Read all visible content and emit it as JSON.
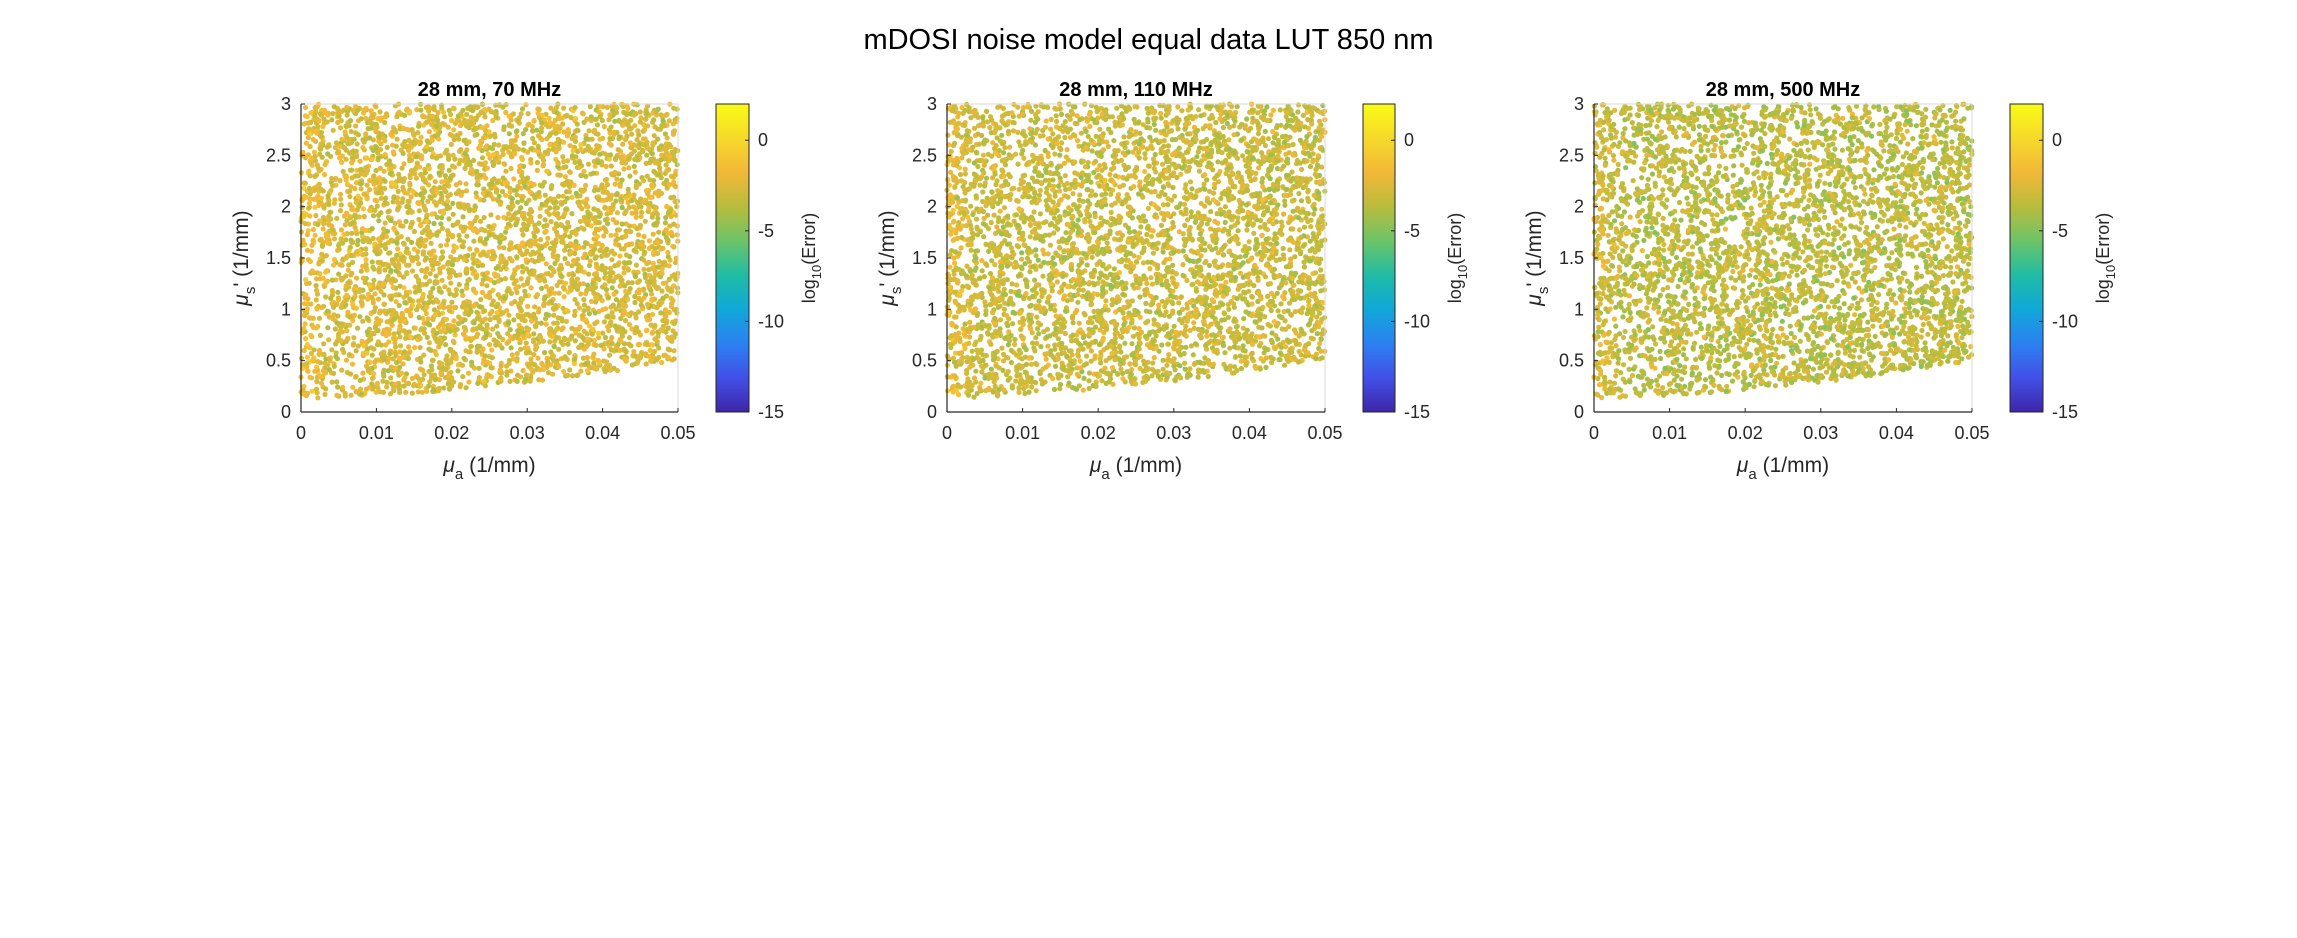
{
  "figure_title": "mDOSI noise model equal data LUT 850 nm",
  "colormap_stops": [
    "#3e26a8",
    "#4250e8",
    "#2c81f2",
    "#10a8d8",
    "#20bca4",
    "#6cc468",
    "#b8bc3c",
    "#f2b838",
    "#f6d92a",
    "#f9fb15"
  ],
  "chart_data": [
    {
      "type": "scatter",
      "title": "28 mm, 70 MHz",
      "xlabel": "μ_a (1/mm)",
      "ylabel": "μ_s' (1/mm)",
      "xlim": [
        0,
        0.05
      ],
      "ylim": [
        0,
        3
      ],
      "xticks": [
        "0",
        "0.01",
        "0.02",
        "0.03",
        "0.04",
        "0.05"
      ],
      "yticks": [
        "0",
        "0.5",
        "1",
        "1.5",
        "2",
        "2.5",
        "3"
      ],
      "region_lower_bound": [
        [
          0.0,
          0.13
        ],
        [
          0.01,
          0.16
        ],
        [
          0.02,
          0.21
        ],
        [
          0.03,
          0.29
        ],
        [
          0.04,
          0.38
        ],
        [
          0.05,
          0.5
        ]
      ],
      "color_value": "log10(Error)",
      "color_level_mean": -2.6,
      "color_level_range": [
        -4.6,
        -0.5
      ],
      "colorbar": {
        "label": "log10(Error)",
        "clim": [
          -15,
          2
        ],
        "ticks": [
          "0",
          "-5",
          "-10",
          "-15"
        ]
      },
      "grid": false,
      "legend": "none"
    },
    {
      "type": "scatter",
      "title": "28 mm, 110 MHz",
      "xlabel": "μ_a (1/mm)",
      "ylabel": "μ_s' (1/mm)",
      "xlim": [
        0,
        0.05
      ],
      "ylim": [
        0,
        3
      ],
      "xticks": [
        "0",
        "0.01",
        "0.02",
        "0.03",
        "0.04",
        "0.05"
      ],
      "yticks": [
        "0",
        "0.5",
        "1",
        "1.5",
        "2",
        "2.5",
        "3"
      ],
      "region_lower_bound": [
        [
          0.0,
          0.13
        ],
        [
          0.01,
          0.17
        ],
        [
          0.02,
          0.22
        ],
        [
          0.03,
          0.3
        ],
        [
          0.04,
          0.4
        ],
        [
          0.05,
          0.52
        ]
      ],
      "color_value": "log10(Error)",
      "color_level_mean": -3.0,
      "color_level_range": [
        -4.8,
        -0.8
      ],
      "colorbar": {
        "label": "log10(Error)",
        "clim": [
          -15,
          2
        ],
        "ticks": [
          "0",
          "-5",
          "-10",
          "-15"
        ]
      },
      "grid": false,
      "legend": "none"
    },
    {
      "type": "scatter",
      "title": "28 mm, 500 MHz",
      "xlabel": "μ_a (1/mm)",
      "ylabel": "μ_s' (1/mm)",
      "xlim": [
        0,
        0.05
      ],
      "ylim": [
        0,
        3
      ],
      "xticks": [
        "0",
        "0.01",
        "0.02",
        "0.03",
        "0.04",
        "0.05"
      ],
      "yticks": [
        "0",
        "0.5",
        "1",
        "1.5",
        "2",
        "2.5",
        "3"
      ],
      "region_lower_bound": [
        [
          0.0,
          0.13
        ],
        [
          0.01,
          0.16
        ],
        [
          0.02,
          0.21
        ],
        [
          0.03,
          0.29
        ],
        [
          0.04,
          0.38
        ],
        [
          0.05,
          0.5
        ]
      ],
      "color_value": "log10(Error)",
      "color_level_mean": -3.4,
      "color_level_range": [
        -5.0,
        -0.5
      ],
      "colorbar": {
        "label": "log10(Error)",
        "clim": [
          -15,
          2
        ],
        "ticks": [
          "0",
          "-5",
          "-10",
          "-15"
        ]
      },
      "grid": false,
      "legend": "none"
    }
  ]
}
